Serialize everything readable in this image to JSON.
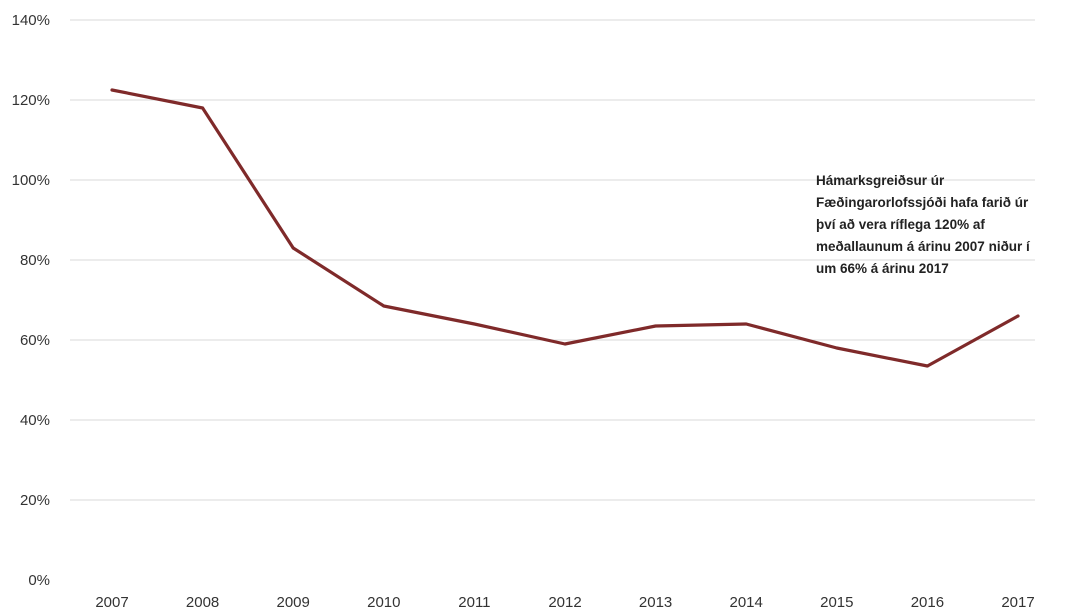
{
  "chart_data": {
    "type": "line",
    "title": "",
    "xlabel": "",
    "ylabel": "",
    "categories": [
      "2007",
      "2008",
      "2009",
      "2010",
      "2011",
      "2012",
      "2013",
      "2014",
      "2015",
      "2016",
      "2017"
    ],
    "series": [
      {
        "values": [
          122.5,
          118,
          83,
          68.5,
          64,
          59,
          63.5,
          64,
          58,
          53.5,
          66
        ],
        "color": "#7f2a2a"
      }
    ],
    "ylim": [
      0,
      140
    ],
    "y_ticks": [
      "0%",
      "20%",
      "40%",
      "60%",
      "80%",
      "100%",
      "120%",
      "140%"
    ],
    "grid": "horizontal",
    "legend": "none",
    "annotation": {
      "lines": [
        "Hámarksgreiðsur úr",
        "Fæðingarorlofssjóði hafa farið úr",
        "því að vera ríflega 120% af",
        "meðallaunum á árinu 2007 niður í",
        "um 66% á árinu 2017"
      ]
    }
  },
  "colors": {
    "line": "#7f2a2a",
    "grid": "#d9d9d9",
    "text": "#333333"
  }
}
